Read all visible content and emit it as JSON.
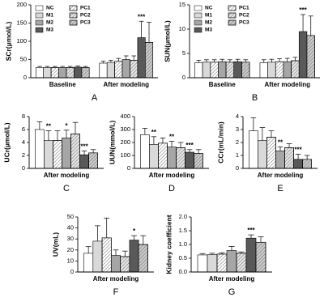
{
  "chart_data": [
    {
      "type": "bar",
      "ylabel": "SCr(μmol/L)",
      "xlabel": "A",
      "categories": [
        "Baseline",
        "After modeling"
      ],
      "ylim": [
        0,
        200
      ],
      "yticks": [
        0,
        50,
        100,
        150,
        200
      ],
      "legend": "upper left",
      "series": [
        {
          "name": "NC",
          "color": "#ffffff",
          "hatch": false,
          "values": [
            28,
            40
          ],
          "errors": [
            3,
            5
          ],
          "significance": [
            null,
            null
          ]
        },
        {
          "name": "M1",
          "color": "#d9d9d9",
          "hatch": false,
          "values": [
            28,
            42
          ],
          "errors": [
            3,
            6
          ],
          "significance": [
            null,
            null
          ]
        },
        {
          "name": "PC1",
          "color": "#ffffff",
          "hatch": true,
          "values": [
            28,
            45
          ],
          "errors": [
            3,
            8
          ],
          "significance": [
            null,
            null
          ]
        },
        {
          "name": "M2",
          "color": "#a6a6a6",
          "hatch": false,
          "values": [
            28,
            50
          ],
          "errors": [
            3,
            10
          ],
          "significance": [
            null,
            null
          ]
        },
        {
          "name": "PC2",
          "color": "#e6e6e6",
          "hatch": true,
          "values": [
            28,
            48
          ],
          "errors": [
            3,
            12
          ],
          "significance": [
            null,
            null
          ]
        },
        {
          "name": "M3",
          "color": "#595959",
          "hatch": false,
          "values": [
            29,
            110
          ],
          "errors": [
            3,
            45
          ],
          "significance": [
            null,
            "***"
          ]
        },
        {
          "name": "PC3",
          "color": "#cccccc",
          "hatch": true,
          "values": [
            28,
            97
          ],
          "errors": [
            3,
            55
          ],
          "significance": [
            null,
            null
          ]
        }
      ]
    },
    {
      "type": "bar",
      "ylabel": "SUN(μmol/L)",
      "xlabel": "B",
      "categories": [
        "Baseline",
        "After modeling"
      ],
      "ylim": [
        0,
        15
      ],
      "yticks": [
        0,
        5,
        10,
        15
      ],
      "legend": "upper left",
      "series": [
        {
          "name": "NC",
          "color": "#ffffff",
          "hatch": false,
          "values": [
            3.1,
            3.1
          ],
          "errors": [
            0.5,
            0.6
          ],
          "significance": [
            null,
            null
          ]
        },
        {
          "name": "M1",
          "color": "#d9d9d9",
          "hatch": false,
          "values": [
            3.2,
            3.2
          ],
          "errors": [
            0.5,
            0.6
          ],
          "significance": [
            null,
            null
          ]
        },
        {
          "name": "PC1",
          "color": "#ffffff",
          "hatch": true,
          "values": [
            3.2,
            3.3
          ],
          "errors": [
            0.5,
            0.6
          ],
          "significance": [
            null,
            null
          ]
        },
        {
          "name": "M2",
          "color": "#a6a6a6",
          "hatch": false,
          "values": [
            3.3,
            3.3
          ],
          "errors": [
            0.5,
            0.7
          ],
          "significance": [
            null,
            null
          ]
        },
        {
          "name": "PC2",
          "color": "#e6e6e6",
          "hatch": true,
          "values": [
            3.2,
            3.5
          ],
          "errors": [
            0.5,
            0.7
          ],
          "significance": [
            null,
            null
          ]
        },
        {
          "name": "M3",
          "color": "#595959",
          "hatch": false,
          "values": [
            3.3,
            9.5
          ],
          "errors": [
            0.5,
            3.5
          ],
          "significance": [
            null,
            "***"
          ]
        },
        {
          "name": "PC3",
          "color": "#cccccc",
          "hatch": true,
          "values": [
            3.2,
            8.7
          ],
          "errors": [
            0.5,
            4
          ],
          "significance": [
            null,
            null
          ]
        }
      ]
    },
    {
      "type": "bar",
      "ylabel": "UCr(μmol/L)",
      "xlabel": "C",
      "categories": [
        "After modeling"
      ],
      "ylim": [
        0,
        8
      ],
      "yticks": [
        0,
        2,
        4,
        6,
        8
      ],
      "series": [
        {
          "color": "#ffffff",
          "hatch": false,
          "values": [
            6
          ],
          "errors": [
            1.2
          ],
          "significance": [
            null
          ]
        },
        {
          "color": "#d9d9d9",
          "hatch": false,
          "values": [
            4.3
          ],
          "errors": [
            1.5
          ],
          "significance": [
            "**"
          ]
        },
        {
          "color": "#ffffff",
          "hatch": true,
          "values": [
            4.3
          ],
          "errors": [
            1.5
          ],
          "significance": [
            null
          ]
        },
        {
          "color": "#a6a6a6",
          "hatch": false,
          "values": [
            4.7
          ],
          "errors": [
            1.2
          ],
          "significance": [
            "*"
          ]
        },
        {
          "color": "#e6e6e6",
          "hatch": true,
          "values": [
            5.3
          ],
          "errors": [
            1.8
          ],
          "significance": [
            null
          ]
        },
        {
          "color": "#595959",
          "hatch": false,
          "values": [
            2.1
          ],
          "errors": [
            0.6
          ],
          "significance": [
            "***"
          ]
        },
        {
          "color": "#cccccc",
          "hatch": true,
          "values": [
            2.4
          ],
          "errors": [
            0.5
          ],
          "significance": [
            null
          ]
        }
      ]
    },
    {
      "type": "bar",
      "ylabel": "UUN(mmol/L)",
      "xlabel": "D",
      "categories": [
        "After modeling"
      ],
      "ylim": [
        0,
        400
      ],
      "yticks": [
        0,
        100,
        200,
        300,
        400
      ],
      "series": [
        {
          "color": "#ffffff",
          "hatch": false,
          "values": [
            260
          ],
          "errors": [
            50
          ],
          "significance": [
            null
          ]
        },
        {
          "color": "#d9d9d9",
          "hatch": false,
          "values": [
            185
          ],
          "errors": [
            60
          ],
          "significance": [
            "**"
          ]
        },
        {
          "color": "#ffffff",
          "hatch": true,
          "values": [
            195
          ],
          "errors": [
            40
          ],
          "significance": [
            null
          ]
        },
        {
          "color": "#a6a6a6",
          "hatch": false,
          "values": [
            165
          ],
          "errors": [
            45
          ],
          "significance": [
            "**"
          ]
        },
        {
          "color": "#e6e6e6",
          "hatch": true,
          "values": [
            160
          ],
          "errors": [
            40
          ],
          "significance": [
            null
          ]
        },
        {
          "color": "#595959",
          "hatch": false,
          "values": [
            125
          ],
          "errors": [
            20
          ],
          "significance": [
            "***"
          ]
        },
        {
          "color": "#cccccc",
          "hatch": true,
          "values": [
            115
          ],
          "errors": [
            30
          ],
          "significance": [
            null
          ]
        }
      ]
    },
    {
      "type": "bar",
      "ylabel": "CCr(mL/min)",
      "xlabel": "E",
      "categories": [
        "After modeling"
      ],
      "ylim": [
        0,
        4
      ],
      "yticks": [
        0,
        1,
        2,
        3,
        4
      ],
      "series": [
        {
          "color": "#ffffff",
          "hatch": false,
          "values": [
            2.9
          ],
          "errors": [
            1
          ],
          "significance": [
            null
          ]
        },
        {
          "color": "#d9d9d9",
          "hatch": false,
          "values": [
            2.15
          ],
          "errors": [
            1
          ],
          "significance": [
            null
          ]
        },
        {
          "color": "#ffffff",
          "hatch": true,
          "values": [
            2.4
          ],
          "errors": [
            0.5
          ],
          "significance": [
            null
          ]
        },
        {
          "color": "#a6a6a6",
          "hatch": false,
          "values": [
            1.35
          ],
          "errors": [
            0.3
          ],
          "significance": [
            "**"
          ]
        },
        {
          "color": "#e6e6e6",
          "hatch": true,
          "values": [
            1.6
          ],
          "errors": [
            0.3
          ],
          "significance": [
            null
          ]
        },
        {
          "color": "#595959",
          "hatch": false,
          "values": [
            0.7
          ],
          "errors": [
            0.4
          ],
          "significance": [
            "***"
          ]
        },
        {
          "color": "#cccccc",
          "hatch": true,
          "values": [
            0.7
          ],
          "errors": [
            0.3
          ],
          "significance": [
            null
          ]
        }
      ]
    },
    {
      "type": "bar",
      "ylabel": "UV(mL)",
      "xlabel": "F",
      "categories": [
        "After modeling"
      ],
      "ylim": [
        0,
        50
      ],
      "yticks": [
        0,
        10,
        20,
        30,
        40,
        50
      ],
      "series": [
        {
          "color": "#ffffff",
          "hatch": false,
          "values": [
            17
          ],
          "errors": [
            6
          ],
          "significance": [
            null
          ]
        },
        {
          "color": "#d9d9d9",
          "hatch": false,
          "values": [
            28
          ],
          "errors": [
            14
          ],
          "significance": [
            null
          ]
        },
        {
          "color": "#ffffff",
          "hatch": true,
          "values": [
            31
          ],
          "errors": [
            18
          ],
          "significance": [
            null
          ]
        },
        {
          "color": "#a6a6a6",
          "hatch": false,
          "values": [
            15
          ],
          "errors": [
            5
          ],
          "significance": [
            null
          ]
        },
        {
          "color": "#e6e6e6",
          "hatch": true,
          "values": [
            14
          ],
          "errors": [
            5
          ],
          "significance": [
            null
          ]
        },
        {
          "color": "#595959",
          "hatch": false,
          "values": [
            29
          ],
          "errors": [
            4
          ],
          "significance": [
            "*"
          ]
        },
        {
          "color": "#cccccc",
          "hatch": true,
          "values": [
            25
          ],
          "errors": [
            8
          ],
          "significance": [
            null
          ]
        }
      ]
    },
    {
      "type": "bar",
      "ylabel": "Kidney coefficient",
      "xlabel": "G",
      "categories": [
        "After modeling"
      ],
      "ylim": [
        0,
        2
      ],
      "yticks": [
        {
          "value": 0,
          "label": "0.0"
        },
        0.5,
        {
          "value": 1,
          "label": "1.0"
        },
        1.5,
        {
          "value": 2,
          "label": "2.0"
        }
      ],
      "series": [
        {
          "color": "#ffffff",
          "hatch": false,
          "values": [
            0.62
          ],
          "errors": [
            0.05
          ],
          "significance": [
            null
          ]
        },
        {
          "color": "#d9d9d9",
          "hatch": false,
          "values": [
            0.63
          ],
          "errors": [
            0.05
          ],
          "significance": [
            null
          ]
        },
        {
          "color": "#ffffff",
          "hatch": true,
          "values": [
            0.65
          ],
          "errors": [
            0.05
          ],
          "significance": [
            null
          ]
        },
        {
          "color": "#a6a6a6",
          "hatch": false,
          "values": [
            0.78
          ],
          "errors": [
            0.15
          ],
          "significance": [
            null
          ]
        },
        {
          "color": "#e6e6e6",
          "hatch": true,
          "values": [
            0.68
          ],
          "errors": [
            0.05
          ],
          "significance": [
            null
          ]
        },
        {
          "color": "#595959",
          "hatch": false,
          "values": [
            1.23
          ],
          "errors": [
            0.12
          ],
          "significance": [
            "***"
          ]
        },
        {
          "color": "#cccccc",
          "hatch": true,
          "values": [
            1.08
          ],
          "errors": [
            0.2
          ],
          "significance": [
            null
          ]
        }
      ]
    }
  ]
}
